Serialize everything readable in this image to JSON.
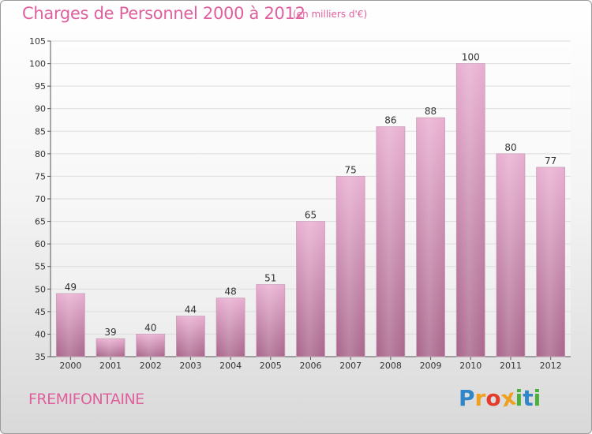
{
  "chart_data": {
    "type": "bar",
    "title": "Charges de Personnel 2000 à 2012",
    "subtitle": "(en milliers d'€)",
    "categories": [
      "2000",
      "2001",
      "2002",
      "2003",
      "2004",
      "2005",
      "2006",
      "2007",
      "2008",
      "2009",
      "2010",
      "2011",
      "2012"
    ],
    "values": [
      49,
      39,
      40,
      44,
      48,
      51,
      65,
      75,
      86,
      88,
      100,
      80,
      77
    ],
    "ylim": [
      35,
      105
    ],
    "yticks": [
      35,
      40,
      45,
      50,
      55,
      60,
      65,
      70,
      75,
      80,
      85,
      90,
      95,
      100,
      105
    ],
    "grid": true,
    "xlabel": "",
    "ylabel": ""
  },
  "town": "FREMIFONTAINE",
  "logo": {
    "letters": [
      "P",
      "r",
      "o",
      "x",
      "i",
      "t",
      "i"
    ],
    "colors": [
      "#2f86c8",
      "#f0a020",
      "#e23c2c",
      "#f0a020",
      "#49b03a",
      "#2f86c8",
      "#49b03a"
    ]
  },
  "colors": {
    "title": "#e0609e",
    "bar_top": "#e8aed0",
    "bar_bottom": "#a8658a",
    "grid": "#dddddd"
  }
}
